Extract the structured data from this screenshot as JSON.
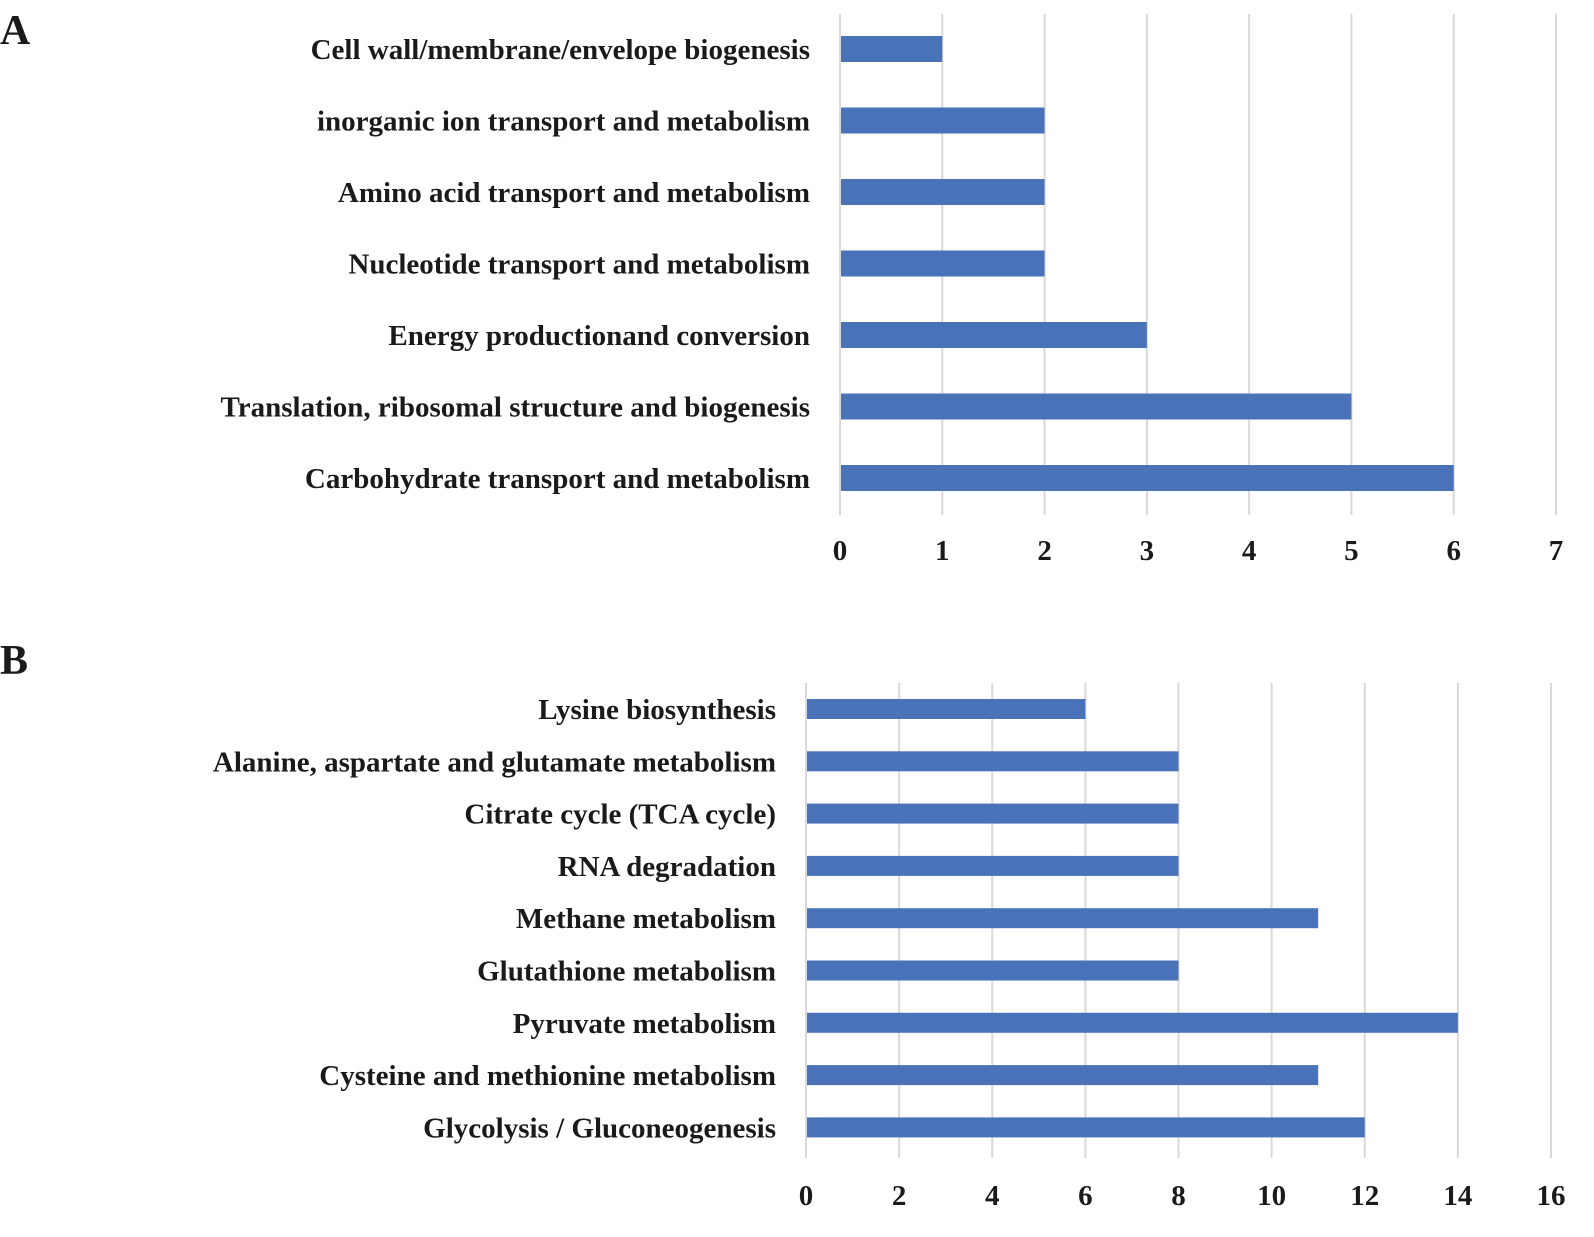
{
  "figure": {
    "panels": [
      "A",
      "B"
    ]
  },
  "colors": {
    "bar": "#4a72b9",
    "grid": "#d9d9d9",
    "text": "#1a1a1a"
  },
  "chart_data": [
    {
      "type": "bar",
      "orientation": "horizontal",
      "panel": "A",
      "title": "",
      "xlabel": "",
      "ylabel": "",
      "categories": [
        "Cell wall/membrane/envelope biogenesis",
        "inorganic ion transport and metabolism",
        "Amino acid transport and metabolism",
        "Nucleotide transport and metabolism",
        "Energy productionand conversion",
        "Translation, ribosomal structure and biogenesis",
        "Carbohydrate transport and metabolism"
      ],
      "values": [
        1,
        2,
        2,
        2,
        3,
        5,
        6
      ],
      "xlim": [
        0,
        7
      ],
      "ticks": [
        0,
        1,
        2,
        3,
        4,
        5,
        6,
        7
      ],
      "grid": true
    },
    {
      "type": "bar",
      "orientation": "horizontal",
      "panel": "B",
      "title": "",
      "xlabel": "",
      "ylabel": "",
      "categories": [
        "Lysine biosynthesis",
        "Alanine, aspartate and glutamate metabolism",
        "Citrate cycle (TCA cycle)",
        "RNA degradation",
        "Methane metabolism",
        "Glutathione metabolism",
        "Pyruvate metabolism",
        "Cysteine and methionine metabolism",
        "Glycolysis / Gluconeogenesis"
      ],
      "values": [
        6,
        8,
        8,
        8,
        11,
        8,
        14,
        11,
        12
      ],
      "xlim": [
        0,
        16
      ],
      "ticks": [
        0,
        2,
        4,
        6,
        8,
        10,
        12,
        14,
        16
      ],
      "grid": true
    }
  ]
}
